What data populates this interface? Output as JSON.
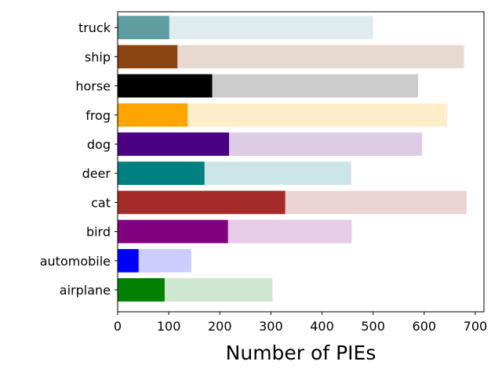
{
  "chart_data": {
    "type": "bar",
    "orientation": "horizontal",
    "categories": [
      "airplane",
      "automobile",
      "bird",
      "cat",
      "deer",
      "dog",
      "frog",
      "horse",
      "ship",
      "truck"
    ],
    "series": [
      {
        "values": [
          303,
          144,
          458,
          683,
          457,
          596,
          645,
          588,
          678,
          500
        ],
        "colors": [
          "#cfe6cf",
          "#ccccff",
          "#e6cce6",
          "#edd4d4",
          "#cce6e6",
          "#dccce6",
          "#ffedcc",
          "#cccccc",
          "#e8d9d0",
          "#dfeced"
        ]
      },
      {
        "values": [
          92,
          41,
          216,
          328,
          170,
          218,
          137,
          185,
          117,
          101
        ],
        "colors": [
          "#008000",
          "#0000ff",
          "#800080",
          "#a52a2a",
          "#008080",
          "#4b0082",
          "#ffa500",
          "#000000",
          "#8b4513",
          "#5f9ea0"
        ]
      }
    ],
    "xlabel": "Number of PIEs",
    "ylabel": "",
    "title": "",
    "xlim": [
      0,
      717
    ],
    "xticks": [
      "0",
      "100",
      "200",
      "300",
      "400",
      "500",
      "600",
      "700"
    ],
    "grid": false,
    "legend": "none"
  }
}
